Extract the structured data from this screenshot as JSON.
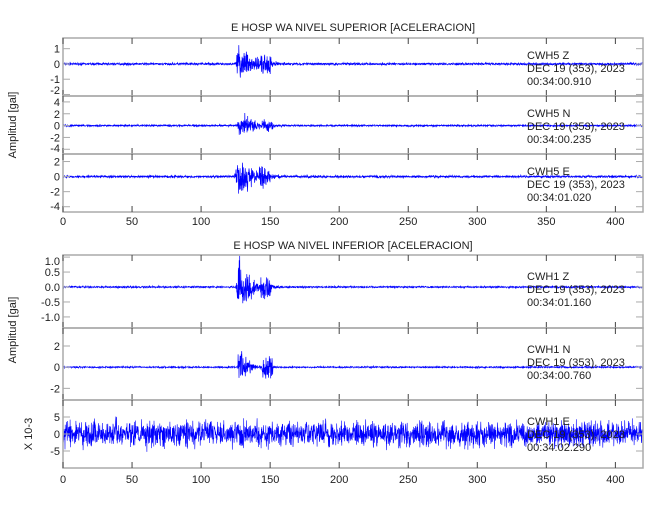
{
  "chart_data": [
    {
      "type": "line",
      "title": "E HOSP WA NIVEL SUPERIOR [ACELERACION]",
      "ylabel": "Amplitud [gal]",
      "xlim": [
        0,
        420
      ],
      "xticks": [
        0,
        50,
        100,
        150,
        200,
        250,
        300,
        350,
        400
      ],
      "line_color": "#0000ff",
      "panels": [
        {
          "station": "CWH5",
          "component": "Z",
          "date": "DEC 19 (353), 2023",
          "time": "00:34:00.910",
          "ylim": [
            -2.1,
            1.7
          ],
          "yticks": [
            1,
            0,
            -1,
            -2
          ],
          "event_onset": 125,
          "peak": 1.5,
          "decay": 10,
          "noise": 0.05
        },
        {
          "station": "CWH5",
          "component": "N",
          "date": "DEC 19 (353), 2023",
          "time": "00:34:00.235",
          "ylim": [
            -4.8,
            5
          ],
          "yticks": [
            4,
            2,
            0,
            -2,
            -4
          ],
          "event_onset": 126,
          "peak": 2.5,
          "decay": 9,
          "noise": 0.1
        },
        {
          "station": "CWH5",
          "component": "E",
          "date": "DEC 19 (353), 2023",
          "time": "00:34:01.020",
          "ylim": [
            -4.7,
            3
          ],
          "yticks": [
            2,
            0,
            -2,
            -4
          ],
          "event_onset": 124,
          "peak": 3.0,
          "decay": 11,
          "noise": 0.1
        }
      ]
    },
    {
      "type": "line",
      "title": "E HOSP WA NIVEL INFERIOR [ACELERACION]",
      "ylabel": "Amplitud [gal]",
      "xlim": [
        0,
        420
      ],
      "xticks": [
        0,
        50,
        100,
        150,
        200,
        250,
        300,
        350,
        400
      ],
      "line_color": "#0000ff",
      "panels": [
        {
          "station": "CWH1",
          "component": "Z",
          "date": "DEC 19 (353), 2023",
          "time": "00:34:01.160",
          "ylim": [
            -1.37,
            1.07
          ],
          "yticks": [
            "1.0",
            "0.5",
            "0.0",
            "-0.5",
            "-1.0"
          ],
          "event_onset": 125,
          "peak": 1.0,
          "decay": 9,
          "noise": 0.02
        },
        {
          "station": "CWH1",
          "component": "N",
          "date": "DEC 19 (353), 2023",
          "time": "00:34:00.760",
          "ylim": [
            -3.1,
            3.7
          ],
          "yticks": [
            2,
            0,
            -2
          ],
          "event_onset": 126,
          "peak": 3.0,
          "decay": 5,
          "noise": 0.05
        },
        {
          "station": "CWH1",
          "component": "E",
          "date": "DEC 19 (353), 2023",
          "time": "00:34:02.290",
          "ylim": [
            -10,
            10
          ],
          "yticks": [
            5,
            0,
            -5
          ],
          "scale_label": "X 10-3",
          "event_onset": null,
          "peak": 0,
          "decay": 0,
          "noise": 2.6
        }
      ]
    }
  ]
}
